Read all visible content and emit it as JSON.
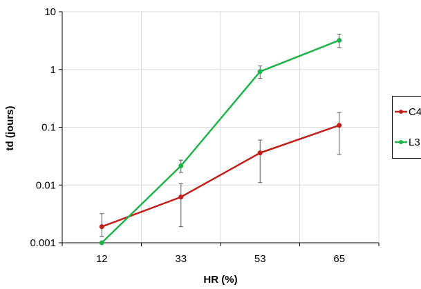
{
  "chart_data": {
    "type": "line",
    "title": "",
    "xlabel": "HR (%)",
    "ylabel": "td (jours)",
    "y_scale": "log",
    "ylim": [
      0.001,
      10
    ],
    "grid": true,
    "legend_position": "right",
    "categories": [
      "12",
      "33",
      "53",
      "65"
    ],
    "y_tick_labels": [
      "0.001",
      "0.01",
      "0.1",
      "1",
      "10"
    ],
    "y_ticks": [
      0.001,
      0.01,
      0.1,
      1,
      10
    ],
    "series": [
      {
        "name": "C4",
        "color": "#c0201b",
        "values": [
          0.0019,
          0.0062,
          0.036,
          0.108
        ],
        "err_low": [
          0.0013,
          0.0019,
          0.011,
          0.034
        ],
        "err_high": [
          0.0032,
          0.0105,
          0.06,
          0.18
        ]
      },
      {
        "name": "L3",
        "color": "#1fb24a",
        "values": [
          0.001,
          0.0215,
          0.92,
          3.2
        ],
        "err_low": [
          0.001,
          0.0165,
          0.7,
          2.4
        ],
        "err_high": [
          0.001,
          0.027,
          1.15,
          4.1
        ]
      }
    ]
  }
}
